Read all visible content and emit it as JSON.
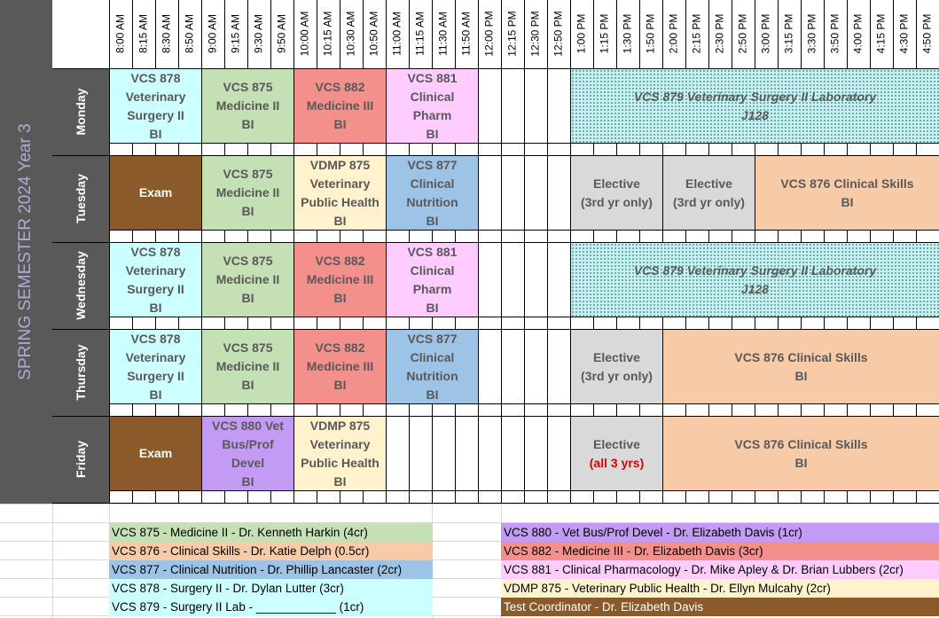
{
  "semester": "SPRING SEMESTER 2024 Year 3",
  "times": [
    "8:00 AM",
    "8:15 AM",
    "8:30 AM",
    "8:50 AM",
    "9:00 AM",
    "9:15 AM",
    "9:30 AM",
    "9:50 AM",
    "10:00 AM",
    "10:15 AM",
    "10:30 AM",
    "10:50 AM",
    "11:00 AM",
    "11:15 AM",
    "11:30 AM",
    "11:50 AM",
    "12:00 PM",
    "12:15 PM",
    "12:30 PM",
    "12:50 PM",
    "1:00 PM",
    "1:15 PM",
    "1:30 PM",
    "1:50 PM",
    "2:00 PM",
    "2:15 PM",
    "2:30 PM",
    "2:50 PM",
    "3:00 PM",
    "3:15 PM",
    "3:30 PM",
    "3:50 PM",
    "4:00 PM",
    "4:15 PM",
    "4:30 PM",
    "4:50 PM"
  ],
  "days": [
    {
      "name": "Monday",
      "blocks": [
        {
          "text": "VCS 878\nVeterinary\nSurgery II\nBI",
          "start": 0,
          "span": 4,
          "color": "#ccffff"
        },
        {
          "text": "VCS 875\nMedicine II\nBI",
          "start": 4,
          "span": 4,
          "color": "#c5e0b4"
        },
        {
          "text": "VCS 882\nMedicine III\nBI",
          "start": 8,
          "span": 4,
          "color": "#f4908c"
        },
        {
          "text": "VCS 881\nClinical\nPharm\nBI",
          "start": 12,
          "span": 4,
          "color": "#ffccff"
        },
        {
          "text": "VCS 879 Veterinary Surgery II Laboratory\nJ128",
          "start": 20,
          "span": 16,
          "color": "#c4f2f2",
          "pattern": "dots"
        }
      ]
    },
    {
      "name": "Tuesday",
      "blocks": [
        {
          "text": "Exam",
          "start": 0,
          "span": 4,
          "color": "#8b5a2b",
          "textColor": "#ffffff"
        },
        {
          "text": "VCS 875\nMedicine II\nBI",
          "start": 4,
          "span": 4,
          "color": "#c5e0b4"
        },
        {
          "text": "VDMP 875\nVeterinary\nPublic Health\nBI",
          "start": 8,
          "span": 4,
          "color": "#fff2cc"
        },
        {
          "text": "VCS 877\nClinical\nNutrition\nBI",
          "start": 12,
          "span": 4,
          "color": "#9dc3e6"
        },
        {
          "text": "Elective\n(3rd yr only)",
          "start": 20,
          "span": 4,
          "color": "#d9d9d9"
        },
        {
          "text": "Elective\n(3rd yr only)",
          "start": 24,
          "span": 4,
          "color": "#d9d9d9"
        },
        {
          "text": "VCS 876 Clinical Skills\nBI",
          "start": 28,
          "span": 8,
          "color": "#f8cba8"
        }
      ]
    },
    {
      "name": "Wednesday",
      "blocks": [
        {
          "text": "VCS 878\nVeterinary\nSurgery II\nBI",
          "start": 0,
          "span": 4,
          "color": "#ccffff"
        },
        {
          "text": "VCS 875\nMedicine II\nBI",
          "start": 4,
          "span": 4,
          "color": "#c5e0b4"
        },
        {
          "text": "VCS 882\nMedicine III\nBI",
          "start": 8,
          "span": 4,
          "color": "#f4908c"
        },
        {
          "text": "VCS 881\nClinical\nPharm\nBI",
          "start": 12,
          "span": 4,
          "color": "#ffccff"
        },
        {
          "text": "VCS 879 Veterinary Surgery II Laboratory\nJ128",
          "start": 20,
          "span": 16,
          "color": "#c4f2f2",
          "pattern": "dots"
        }
      ]
    },
    {
      "name": "Thursday",
      "blocks": [
        {
          "text": "VCS 878\nVeterinary\nSurgery II\nBI",
          "start": 0,
          "span": 4,
          "color": "#ccffff"
        },
        {
          "text": "VCS 875\nMedicine II\nBI",
          "start": 4,
          "span": 4,
          "color": "#c5e0b4"
        },
        {
          "text": "VCS 882\nMedicine III\nBI",
          "start": 8,
          "span": 4,
          "color": "#f4908c"
        },
        {
          "text": "VCS 877\nClinical\nNutrition\nBI",
          "start": 12,
          "span": 4,
          "color": "#9dc3e6"
        },
        {
          "text": "Elective\n(3rd yr only)",
          "start": 20,
          "span": 4,
          "color": "#d9d9d9"
        },
        {
          "text": "VCS 876 Clinical Skills\nBI",
          "start": 24,
          "span": 12,
          "color": "#f8cba8"
        }
      ]
    },
    {
      "name": "Friday",
      "blocks": [
        {
          "text": "Exam",
          "start": 0,
          "span": 4,
          "color": "#8b5a2b",
          "textColor": "#ffffff"
        },
        {
          "text": "VCS 880  Vet\nBus/Prof\nDevel\nBI",
          "start": 4,
          "span": 4,
          "color": "#c39bf5"
        },
        {
          "text": "VDMP 875\nVeterinary\nPublic Health\nBI",
          "start": 8,
          "span": 4,
          "color": "#fff2cc"
        },
        {
          "text": "Elective",
          "redLine": "(all 3 yrs)",
          "start": 20,
          "span": 4,
          "color": "#d9d9d9"
        },
        {
          "text": "VCS 876 Clinical Skills\nBI",
          "start": 24,
          "span": 12,
          "color": "#f8cba8"
        }
      ]
    }
  ],
  "legend_left": [
    {
      "text": "VCS 875 - Medicine II - Dr. Kenneth Harkin (4cr)",
      "color": "#c5e0b4"
    },
    {
      "text": "VCS 876 - Clinical Skills - Dr. Katie Delph (0.5cr)",
      "color": "#f8cba8"
    },
    {
      "text": "VCS 877 - Clinical Nutrition - Dr. Phillip Lancaster (2cr)",
      "color": "#9dc3e6"
    },
    {
      "text": "VCS 878 - Surgery II - Dr. Dylan Lutter (3cr)",
      "color": "#ccffff"
    },
    {
      "text": "VCS 879 - Surgery II Lab - ____________ (1cr)",
      "color": "#ccffff"
    }
  ],
  "legend_right": [
    {
      "text": "VCS 880 - Vet Bus/Prof Devel - Dr. Elizabeth Davis (1cr)",
      "color": "#c39bf5"
    },
    {
      "text": "VCS 882 - Medicine III - Dr. Elizabeth Davis (3cr)",
      "color": "#f4908c"
    },
    {
      "text": "VCS 881 - Clinical Pharmacology - Dr. Mike Apley & Dr.  Brian Lubbers (2cr)",
      "color": "#ffccff"
    },
    {
      "text": "VDMP 875 - Veterinary Public Health - Dr. Ellyn Mulcahy (2cr)",
      "color": "#fff2cc"
    },
    {
      "text": "Test Coordinator - Dr. Elizabeth Davis",
      "color": "#8b5a2b",
      "dark": true
    }
  ]
}
